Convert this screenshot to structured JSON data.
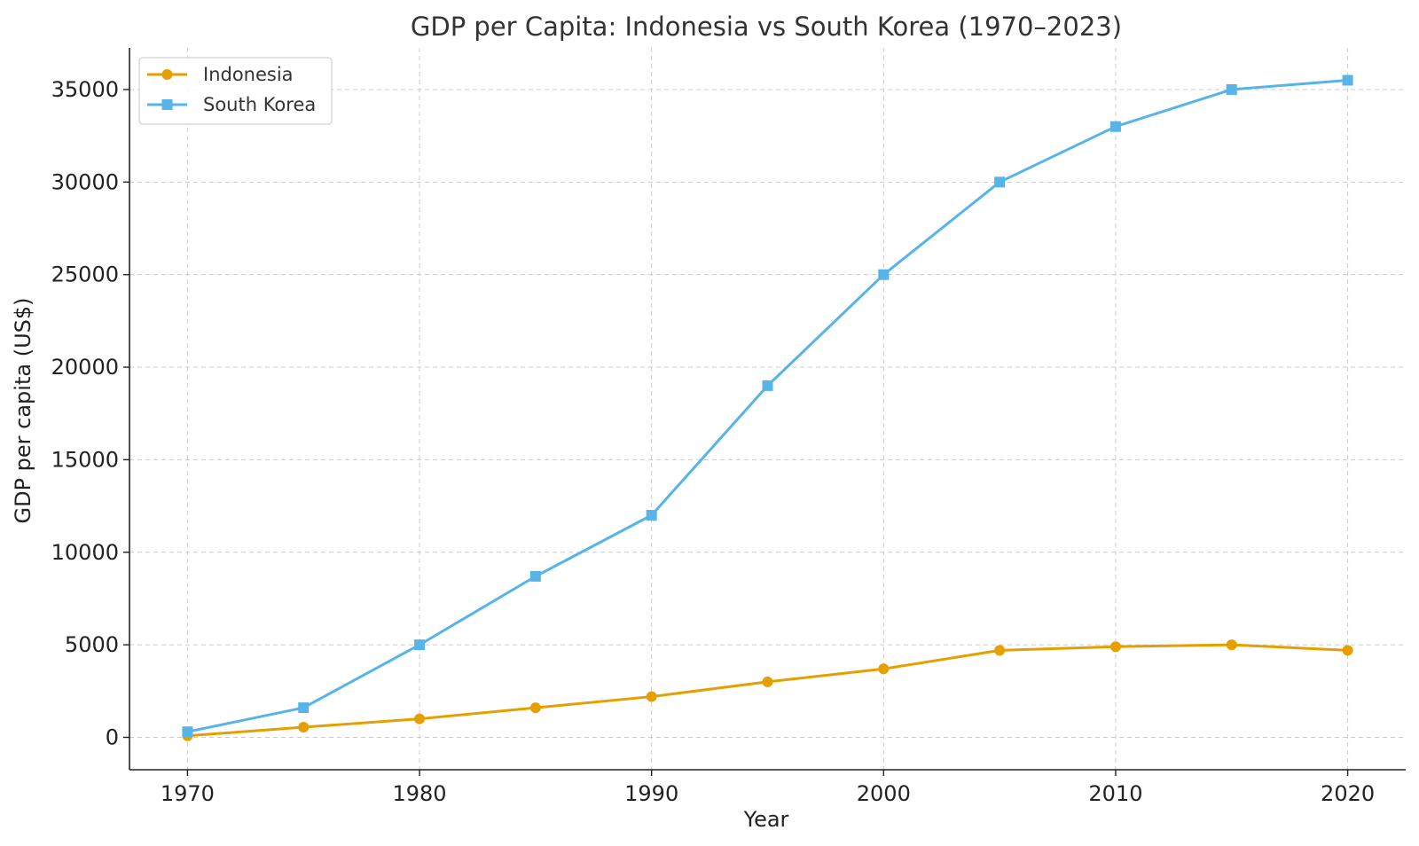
{
  "chart_data": {
    "type": "line",
    "title": "GDP per Capita: Indonesia vs South Korea (1970–2023)",
    "xlabel": "Year",
    "ylabel": "GDP per capita (US$)",
    "x": [
      1970,
      1975,
      1980,
      1985,
      1990,
      1995,
      2000,
      2005,
      2010,
      2015,
      2020
    ],
    "xlim": [
      1967.5,
      2022.5
    ],
    "ylim": [
      -1750,
      37250
    ],
    "xticks": [
      1970,
      1980,
      1990,
      2000,
      2010,
      2020
    ],
    "yticks": [
      0,
      5000,
      10000,
      15000,
      20000,
      25000,
      30000,
      35000
    ],
    "grid": true,
    "legend_position": "top-left",
    "series": [
      {
        "name": "Indonesia",
        "color": "#E69F00",
        "marker": "circle",
        "values": [
          80,
          550,
          1000,
          1600,
          2200,
          3000,
          3700,
          4700,
          4900,
          5000,
          4700
        ]
      },
      {
        "name": "South Korea",
        "color": "#56B4E9",
        "marker": "square",
        "values": [
          300,
          1600,
          5000,
          8700,
          12000,
          19000,
          25000,
          30000,
          33000,
          35000,
          35500
        ]
      }
    ]
  }
}
